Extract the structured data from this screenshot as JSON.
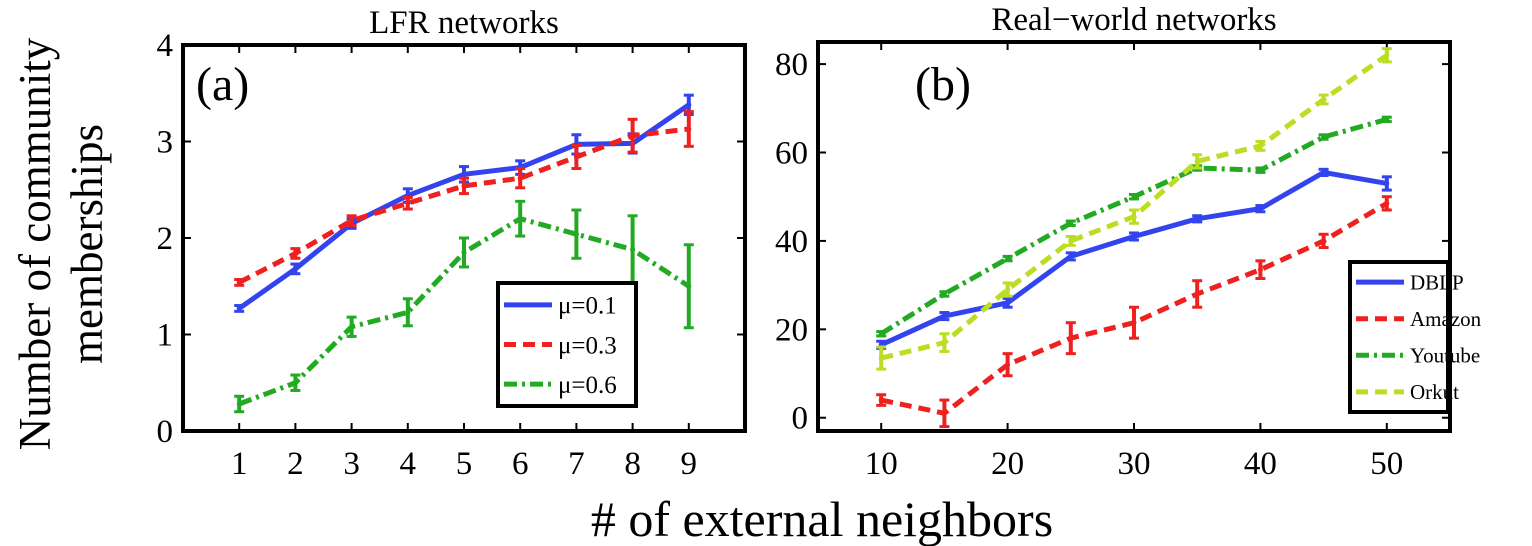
{
  "figure": {
    "ylabel_line1": "Number of community",
    "ylabel_line2": "memberships",
    "xlabel": "# of external neighbors"
  },
  "chart_data": [
    {
      "type": "line",
      "panel_label": "(a)",
      "title": "LFR networks",
      "xlim": [
        0,
        10
      ],
      "ylim": [
        0,
        4
      ],
      "xticks": [
        1,
        2,
        3,
        4,
        5,
        6,
        7,
        8,
        9
      ],
      "yticks": [
        0,
        1,
        2,
        3,
        4
      ],
      "legend_position": "bottom-right",
      "x": [
        1,
        2,
        3,
        4,
        5,
        6,
        7,
        8,
        9
      ],
      "series": [
        {
          "name": "μ=0.1",
          "color": "#3344ee",
          "style": "solid",
          "values": [
            1.27,
            1.68,
            2.15,
            2.44,
            2.66,
            2.73,
            2.97,
            2.98,
            3.38
          ],
          "errors": [
            0.03,
            0.05,
            0.05,
            0.07,
            0.08,
            0.07,
            0.1,
            0.1,
            0.1
          ]
        },
        {
          "name": "μ=0.3",
          "color": "#ee2020",
          "style": "dashed",
          "values": [
            1.54,
            1.84,
            2.18,
            2.36,
            2.54,
            2.62,
            2.84,
            3.06,
            3.13
          ],
          "errors": [
            0.03,
            0.05,
            0.05,
            0.06,
            0.08,
            0.1,
            0.12,
            0.17,
            0.18
          ]
        },
        {
          "name": "μ=0.6",
          "color": "#22aa22",
          "style": "dashdot",
          "values": [
            0.28,
            0.5,
            1.08,
            1.23,
            1.85,
            2.2,
            2.04,
            1.88,
            1.5
          ],
          "errors": [
            0.08,
            0.08,
            0.1,
            0.14,
            0.15,
            0.18,
            0.25,
            0.35,
            0.43
          ]
        }
      ]
    },
    {
      "type": "line",
      "panel_label": "(b)",
      "title": "Real−world networks",
      "xlim": [
        5,
        55
      ],
      "ylim": [
        -3,
        85
      ],
      "xticks": [
        10,
        20,
        30,
        40,
        50
      ],
      "yticks": [
        0,
        20,
        40,
        60,
        80
      ],
      "legend_position": "bottom-right",
      "x": [
        10,
        15,
        20,
        25,
        30,
        35,
        40,
        45,
        50
      ],
      "series": [
        {
          "name": "DBLP",
          "color": "#3344ee",
          "style": "solid",
          "values": [
            16.5,
            23,
            26,
            36.5,
            41,
            45,
            47.3,
            55.5,
            53
          ],
          "errors": [
            0.8,
            0.8,
            1,
            0.8,
            0.8,
            0.7,
            0.7,
            0.7,
            1.5
          ]
        },
        {
          "name": "Amazon",
          "color": "#ee2020",
          "style": "dashed",
          "values": [
            4,
            1,
            12,
            18,
            21.5,
            28,
            33.5,
            40,
            48.5
          ],
          "errors": [
            1.2,
            3,
            2.5,
            3.5,
            3.5,
            3,
            2,
            1.5,
            1.5
          ]
        },
        {
          "name": "Youtube",
          "color": "#22aa22",
          "style": "dashdot",
          "values": [
            19,
            28,
            36,
            44,
            50,
            56.5,
            56,
            63.5,
            67.5
          ],
          "errors": [
            0.5,
            0.5,
            0.5,
            0.5,
            0.5,
            0.5,
            0.5,
            0.5,
            0.5
          ]
        },
        {
          "name": "Orkut",
          "color": "#bbdd22",
          "style": "dashed",
          "values": [
            13.5,
            17,
            29,
            40,
            45.5,
            58,
            61.5,
            72,
            82
          ],
          "errors": [
            2.5,
            2,
            1.5,
            1,
            1.5,
            1.5,
            1,
            1,
            1.5
          ]
        }
      ]
    }
  ]
}
